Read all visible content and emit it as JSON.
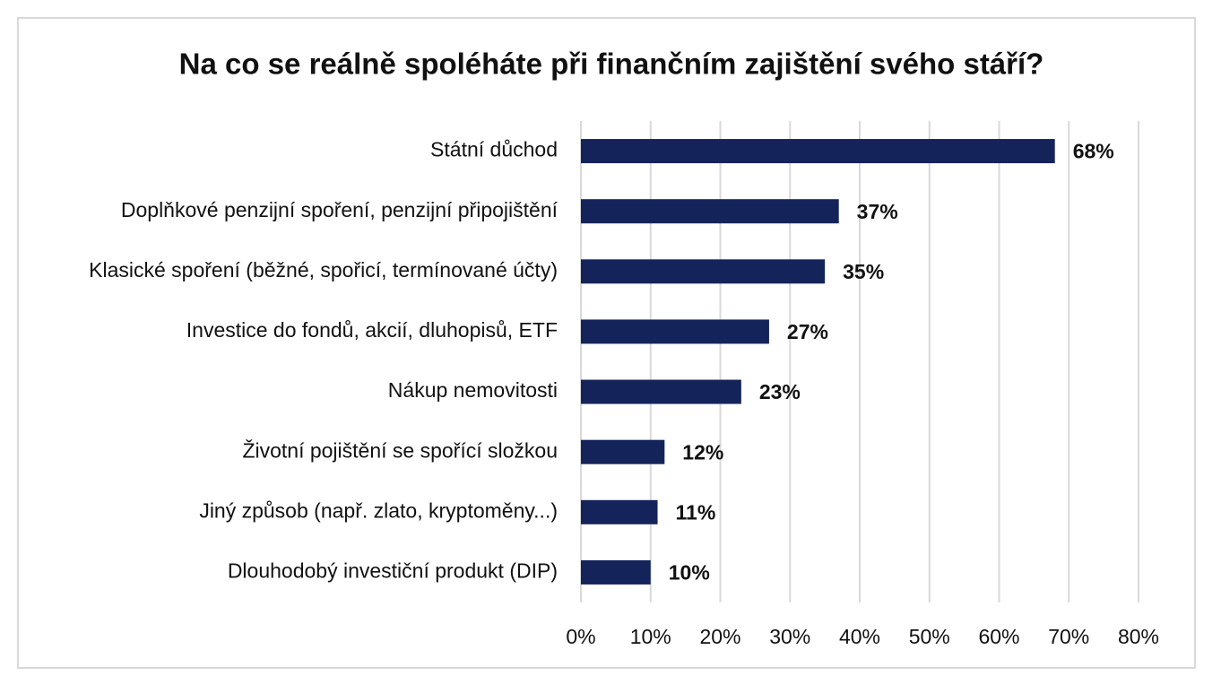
{
  "chart_data": {
    "type": "barh",
    "title": "Na co se reálně spoléháte při finančním zajištění svého stáří?",
    "categories": [
      "Státní důchod",
      "Doplňkové penzijní spoření, penzijní připojištění",
      "Klasické spoření (běžné, spořicí, termínované účty)",
      "Investice do fondů, akcií, dluhopisů, ETF",
      "Nákup nemovitosti",
      "Životní pojištění se spořící složkou",
      "Jiný způsob (např. zlato, kryptoměny...)",
      "Dlouhodobý investiční produkt (DIP)"
    ],
    "values": [
      68,
      37,
      35,
      27,
      23,
      12,
      11,
      10
    ],
    "value_labels": [
      "68%",
      "37%",
      "35%",
      "27%",
      "23%",
      "12%",
      "11%",
      "10%"
    ],
    "color": "#14245a",
    "xlim": [
      0,
      80
    ],
    "xticks": [
      {
        "value": 0,
        "label": "0%"
      },
      {
        "value": 10,
        "label": "10%"
      },
      {
        "value": 20,
        "label": "20%"
      },
      {
        "value": 30,
        "label": "30%"
      },
      {
        "value": 40,
        "label": "40%"
      },
      {
        "value": 50,
        "label": "50%"
      },
      {
        "value": 60,
        "label": "60%"
      },
      {
        "value": 70,
        "label": "70%"
      },
      {
        "value": 80,
        "label": "80%"
      }
    ],
    "grid": true
  }
}
